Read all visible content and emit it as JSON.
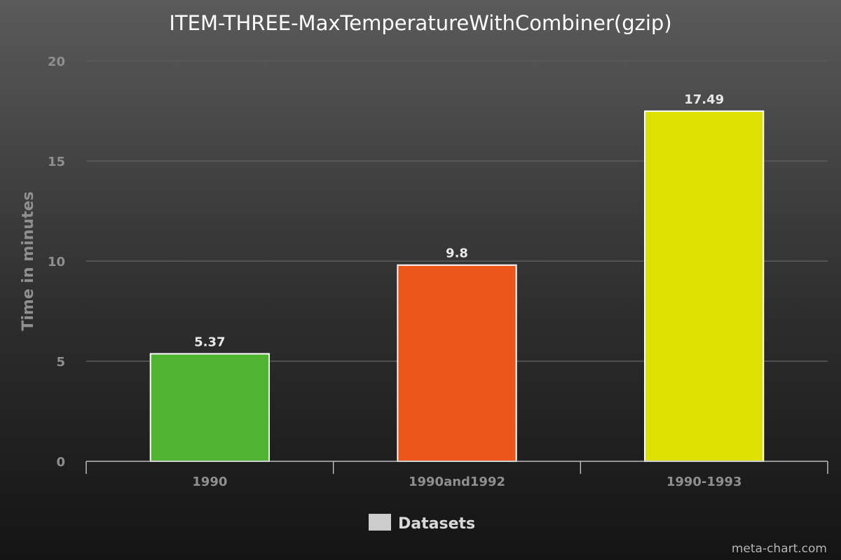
{
  "chart_data": {
    "type": "bar",
    "title": "ITEM-THREE-MaxTemperatureWithCombiner(gzip)",
    "ylabel": "Time in minutes",
    "xlabel": "",
    "categories": [
      "1990",
      "1990and1992",
      "1990-1993"
    ],
    "values": [
      5.37,
      9.8,
      17.49
    ],
    "value_labels": [
      "5.37",
      "9.8",
      "17.49"
    ],
    "colors": [
      "#50b432",
      "#ed561b",
      "#dde000"
    ],
    "ylim": [
      0,
      20
    ],
    "yticks": [
      0,
      5,
      10,
      15,
      20
    ],
    "grid": true,
    "legend": {
      "position": "bottom",
      "entries": [
        "Datasets"
      ],
      "swatch_color": "#cccccc"
    }
  },
  "credit": "meta-chart.com"
}
